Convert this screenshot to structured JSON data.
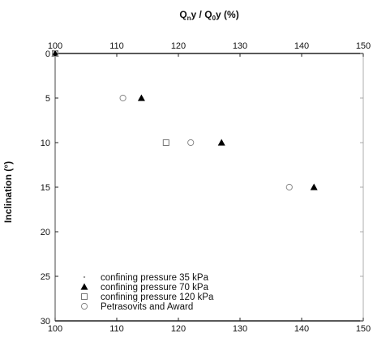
{
  "chart_data": {
    "type": "scatter",
    "x_axis": {
      "label_main": "Q",
      "label_sub1": "n",
      "label_mid": "y / Q",
      "label_sub2": "0",
      "label_end": "y (%)",
      "range": [
        100,
        150
      ],
      "ticks": [
        "100",
        "110",
        "120",
        "130",
        "140",
        "150"
      ],
      "position": "top and bottom"
    },
    "y_axis": {
      "label": "Inclination (°)",
      "range": [
        0,
        30
      ],
      "reversed": true,
      "ticks": [
        "0",
        "5",
        "10",
        "15",
        "20",
        "25",
        "30"
      ]
    },
    "grid": false,
    "legend_position": "bottom-left",
    "series": [
      {
        "name": "confining pressure 35 kPa",
        "marker": "none",
        "points": [
          [
            100,
            0
          ]
        ]
      },
      {
        "name": "confining pressure 70 kPa",
        "marker": "filled-triangle",
        "points": [
          [
            100,
            0
          ],
          [
            114,
            5
          ],
          [
            127,
            10
          ],
          [
            142,
            15
          ]
        ]
      },
      {
        "name": "confining pressure 120 kPa",
        "marker": "open-square",
        "points": [
          [
            100,
            0
          ],
          [
            118,
            10
          ]
        ]
      },
      {
        "name": "Petrasovits and Award",
        "marker": "open-circle",
        "points": [
          [
            100,
            0
          ],
          [
            111,
            5
          ],
          [
            122,
            10
          ],
          [
            138,
            15
          ]
        ]
      }
    ]
  }
}
